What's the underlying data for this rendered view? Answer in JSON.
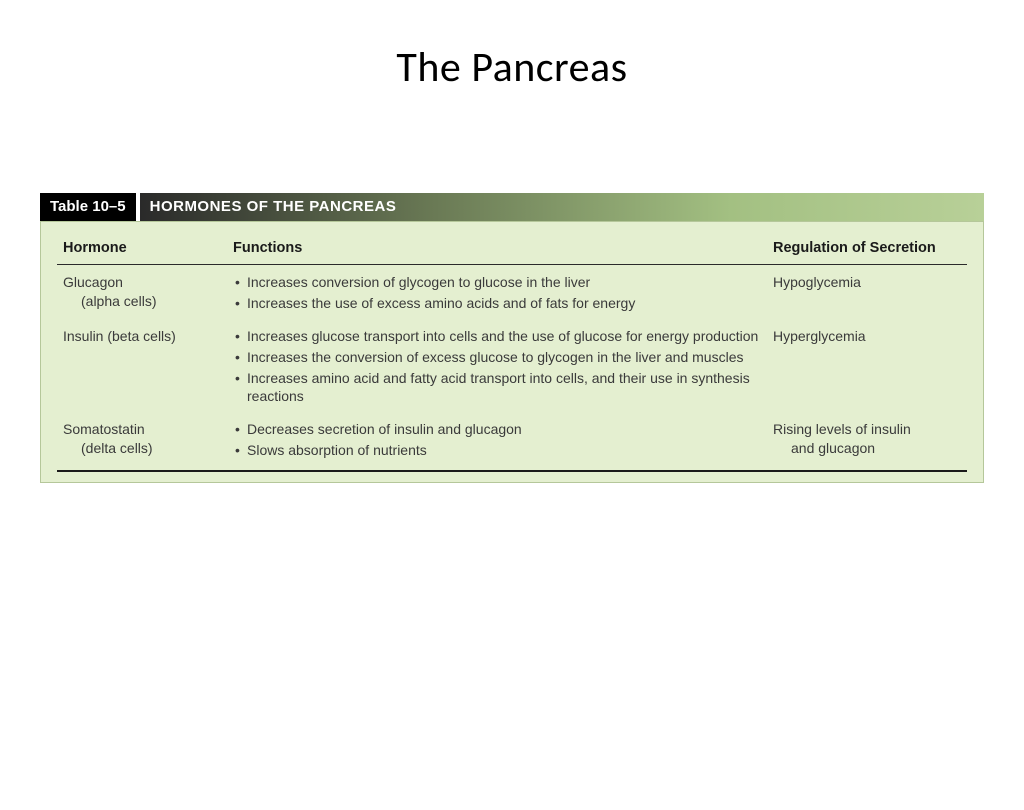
{
  "title": "The Pancreas",
  "table": {
    "label": "Table 10–5",
    "heading": "HORMONES OF THE PANCREAS",
    "columns": {
      "hormone": "Hormone",
      "functions": "Functions",
      "regulation": "Regulation of Secretion"
    },
    "rows": [
      {
        "hormone_main": "Glucagon",
        "hormone_sub": "(alpha cells)",
        "functions": [
          "Increases conversion of glycogen to glucose in the liver",
          "Increases the use of excess amino acids and of fats for energy"
        ],
        "regulation_main": "Hypoglycemia",
        "regulation_sub": ""
      },
      {
        "hormone_main": "Insulin (beta cells)",
        "hormone_sub": "",
        "functions": [
          "Increases glucose transport into cells and the use of glucose for energy production",
          "Increases the conversion of excess glucose to glycogen in the liver and muscles",
          "Increases amino acid and fatty acid transport into cells, and their use in synthesis reactions"
        ],
        "regulation_main": "Hyperglycemia",
        "regulation_sub": ""
      },
      {
        "hormone_main": "Somatostatin",
        "hormone_sub": "(delta cells)",
        "functions": [
          "Decreases secretion of insulin and glucagon",
          "Slows absorption of nutrients"
        ],
        "regulation_main": "Rising levels of insulin",
        "regulation_sub": "and glucagon"
      }
    ]
  },
  "style": {
    "page_bg": "#ffffff",
    "title_color": "#000000",
    "title_fontsize": 42,
    "table_body_bg": "#e4efd0",
    "table_body_border": "#b5c79a",
    "header_label_bg": "#000000",
    "header_gradient_from": "#2a2a2a",
    "header_gradient_to": "#b8d098",
    "text_color": "#3a3a3a",
    "head_text_color": "#1a1a1a",
    "rule_color": "#2a2a2a",
    "body_fontsize": 14
  }
}
